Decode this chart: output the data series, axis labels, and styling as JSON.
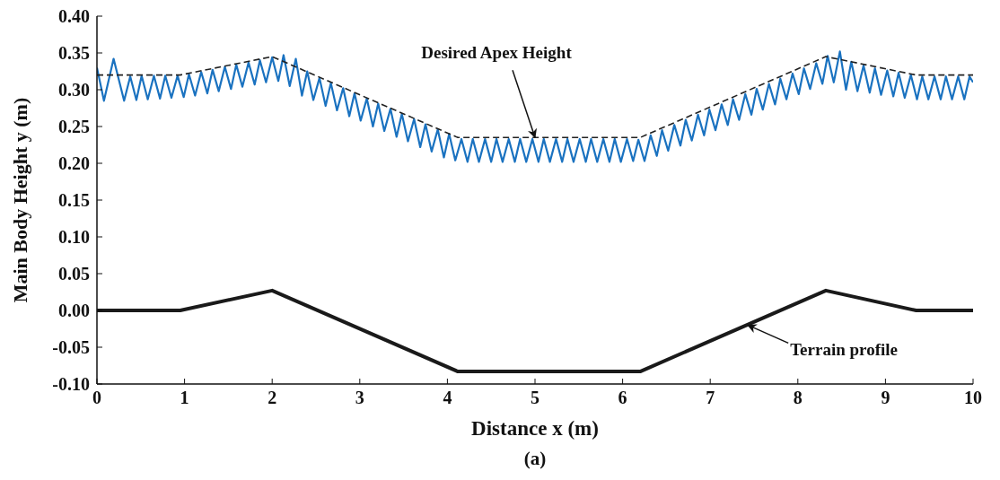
{
  "chart_data": {
    "type": "line",
    "xlabel": "Distance x (m)",
    "ylabel": "Main Body Height y (m)",
    "xlim": [
      0,
      10
    ],
    "xticks": [
      0,
      1,
      2,
      3,
      4,
      5,
      6,
      7,
      8,
      9,
      10
    ],
    "ylim": [
      -0.1,
      0.4
    ],
    "yticks": [
      {
        "value": -0.1,
        "label": "-0.10"
      },
      {
        "value": -0.05,
        "label": "-0.05"
      },
      {
        "value": 0,
        "label": "0.00"
      },
      {
        "value": 0.05,
        "label": "0.05"
      },
      {
        "value": 0.1,
        "label": "0.10"
      },
      {
        "value": 0.15,
        "label": "0.15"
      },
      {
        "value": 0.2,
        "label": "0.20"
      },
      {
        "value": 0.25,
        "label": "0.25"
      },
      {
        "value": 0.3,
        "label": "0.30"
      },
      {
        "value": 0.35,
        "label": "0.35"
      },
      {
        "value": 0.4,
        "label": "0.40"
      }
    ],
    "marker": "none",
    "series": [
      {
        "color": "#1a72c0",
        "line_style": "solid",
        "x": [
          0,
          0.08,
          0.19,
          0.31,
          0.38,
          0.45,
          0.51,
          0.58,
          0.65,
          0.72,
          0.78,
          0.85,
          0.92,
          0.99,
          1.05,
          1.12,
          1.19,
          1.26,
          1.32,
          1.39,
          1.46,
          1.53,
          1.59,
          1.66,
          1.73,
          1.8,
          1.86,
          1.93,
          2.0,
          2.07,
          2.13,
          2.2,
          2.27,
          2.34,
          2.4,
          2.47,
          2.54,
          2.61,
          2.67,
          2.74,
          2.81,
          2.88,
          2.94,
          3.01,
          3.08,
          3.15,
          3.21,
          3.28,
          3.35,
          3.42,
          3.48,
          3.55,
          3.62,
          3.69,
          3.75,
          3.82,
          3.89,
          3.96,
          4.02,
          4.09,
          4.16,
          4.23,
          4.29,
          4.36,
          4.43,
          4.5,
          4.56,
          4.63,
          4.7,
          4.77,
          4.83,
          4.9,
          4.97,
          5.04,
          5.1,
          5.17,
          5.24,
          5.31,
          5.37,
          5.44,
          5.51,
          5.58,
          5.64,
          5.71,
          5.78,
          5.85,
          5.91,
          5.98,
          6.05,
          6.12,
          6.18,
          6.25,
          6.32,
          6.39,
          6.45,
          6.52,
          6.59,
          6.66,
          6.72,
          6.79,
          6.86,
          6.93,
          6.99,
          7.06,
          7.13,
          7.2,
          7.26,
          7.33,
          7.4,
          7.47,
          7.53,
          7.6,
          7.67,
          7.74,
          7.8,
          7.87,
          7.94,
          8.01,
          8.07,
          8.14,
          8.21,
          8.28,
          8.34,
          8.41,
          8.48,
          8.55,
          8.61,
          8.68,
          8.75,
          8.82,
          8.88,
          8.95,
          9.02,
          9.09,
          9.15,
          9.22,
          9.29,
          9.36,
          9.42,
          9.49,
          9.56,
          9.63,
          9.69,
          9.76,
          9.83,
          9.9,
          9.96,
          10.0
        ],
        "values": [
          0.33,
          0.285,
          0.342,
          0.285,
          0.318,
          0.286,
          0.319,
          0.287,
          0.319,
          0.288,
          0.319,
          0.289,
          0.319,
          0.29,
          0.321,
          0.292,
          0.324,
          0.295,
          0.327,
          0.298,
          0.331,
          0.301,
          0.334,
          0.304,
          0.337,
          0.307,
          0.34,
          0.31,
          0.344,
          0.312,
          0.347,
          0.305,
          0.342,
          0.292,
          0.325,
          0.286,
          0.316,
          0.278,
          0.309,
          0.272,
          0.302,
          0.264,
          0.295,
          0.258,
          0.288,
          0.25,
          0.281,
          0.244,
          0.274,
          0.236,
          0.267,
          0.23,
          0.26,
          0.222,
          0.253,
          0.216,
          0.246,
          0.208,
          0.24,
          0.204,
          0.233,
          0.202,
          0.233,
          0.202,
          0.233,
          0.202,
          0.233,
          0.202,
          0.233,
          0.202,
          0.233,
          0.202,
          0.233,
          0.202,
          0.233,
          0.202,
          0.233,
          0.202,
          0.233,
          0.202,
          0.233,
          0.202,
          0.233,
          0.202,
          0.233,
          0.202,
          0.233,
          0.202,
          0.233,
          0.203,
          0.232,
          0.203,
          0.238,
          0.21,
          0.245,
          0.217,
          0.252,
          0.224,
          0.259,
          0.231,
          0.266,
          0.238,
          0.273,
          0.245,
          0.28,
          0.252,
          0.287,
          0.259,
          0.294,
          0.266,
          0.301,
          0.273,
          0.308,
          0.28,
          0.315,
          0.287,
          0.322,
          0.294,
          0.329,
          0.301,
          0.336,
          0.308,
          0.346,
          0.31,
          0.352,
          0.3,
          0.338,
          0.298,
          0.333,
          0.296,
          0.329,
          0.293,
          0.326,
          0.291,
          0.323,
          0.289,
          0.32,
          0.287,
          0.318,
          0.287,
          0.318,
          0.287,
          0.318,
          0.287,
          0.318,
          0.287,
          0.318,
          0.31
        ]
      },
      {
        "color": "#222222",
        "line_style": "dashed",
        "x": [
          0,
          0.95,
          2.0,
          4.12,
          6.2,
          8.32,
          9.35,
          10
        ],
        "values": [
          0.32,
          0.32,
          0.345,
          0.235,
          0.235,
          0.345,
          0.32,
          0.32
        ]
      },
      {
        "color": "#1a1a1a",
        "line_style": "solid",
        "x": [
          0,
          0.95,
          2.0,
          4.12,
          6.2,
          8.32,
          9.35,
          10
        ],
        "values": [
          0,
          0,
          0.027,
          -0.083,
          -0.083,
          0.027,
          0,
          0
        ]
      }
    ],
    "annotations": [
      {
        "text": "Desired Apex Height",
        "x": 5.0,
        "y": 0.235
      },
      {
        "text": "Terrain profile",
        "x": 7.43,
        "y": -0.02
      },
      "(a)"
    ]
  }
}
